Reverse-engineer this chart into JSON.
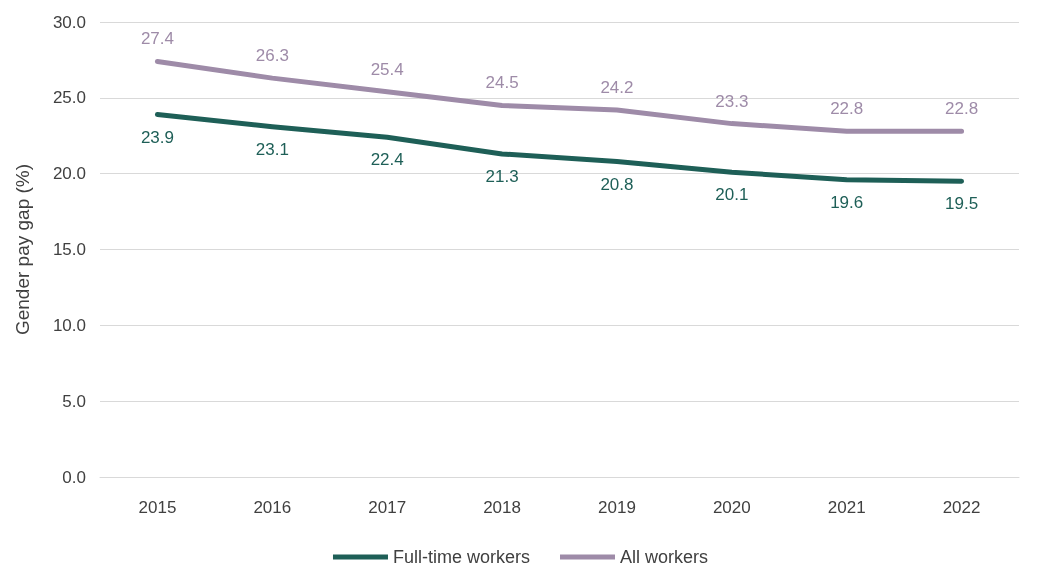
{
  "chart_data": {
    "type": "line",
    "ylabel": "Gender pay gap (%)",
    "categories": [
      "2015",
      "2016",
      "2017",
      "2018",
      "2019",
      "2020",
      "2021",
      "2022"
    ],
    "series": [
      {
        "name": "Full-time workers",
        "color": "#1e5f57",
        "values": [
          23.9,
          23.1,
          22.4,
          21.3,
          20.8,
          20.1,
          19.6,
          19.5
        ]
      },
      {
        "name": "All workers",
        "color": "#9e8ba8",
        "values": [
          27.4,
          26.3,
          25.4,
          24.5,
          24.2,
          23.3,
          22.8,
          22.8
        ]
      }
    ],
    "ylim": [
      0,
      30
    ],
    "yticks": [
      {
        "value": 0,
        "label": "0.0"
      },
      {
        "value": 5,
        "label": "5.0"
      },
      {
        "value": 10,
        "label": "10.0"
      },
      {
        "value": 15,
        "label": "15.0"
      },
      {
        "value": 20,
        "label": "20.0"
      },
      {
        "value": 25,
        "label": "25.0"
      },
      {
        "value": 30,
        "label": "30.0"
      }
    ],
    "grid": "y",
    "legend": "bottom",
    "marker": "none",
    "line_style": "solid",
    "data_labels": true
  }
}
